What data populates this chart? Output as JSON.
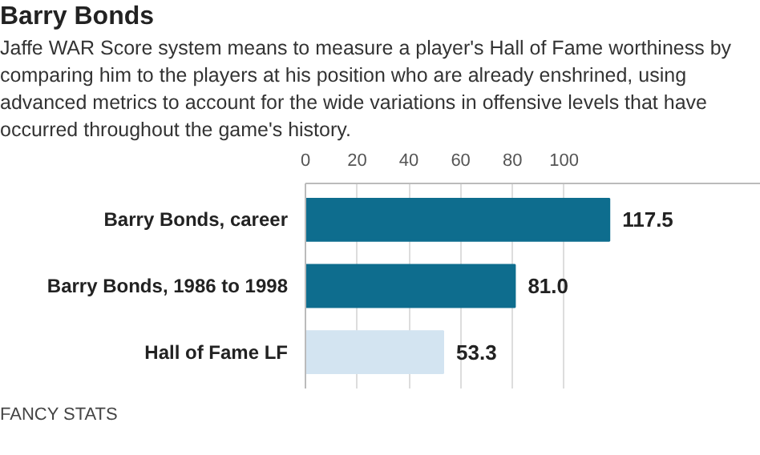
{
  "chart_data": {
    "type": "bar",
    "orientation": "horizontal",
    "title": "Barry Bonds",
    "subtitle": "Jaffe WAR Score system means to measure a player's Hall of Fame worthiness by comparing him to the players at his position who are already enshrined, using advanced metrics to account for the wide variations in offensive levels that have occurred throughout the game's history.",
    "categories": [
      "Barry Bonds, career",
      "Barry Bonds, 1986 to 1998",
      "Hall of Fame LF"
    ],
    "values": [
      117.5,
      81.0,
      53.3
    ],
    "colors": [
      "#0e6d8e",
      "#0e6d8e",
      "#d3e4f1"
    ],
    "value_labels": [
      "117.5",
      "81.0",
      "53.3"
    ],
    "xlim": [
      0,
      176
    ],
    "xticks": [
      0,
      20,
      40,
      60,
      80,
      100
    ],
    "grid": "x",
    "annotations": [
      "FANCY STATS"
    ]
  }
}
